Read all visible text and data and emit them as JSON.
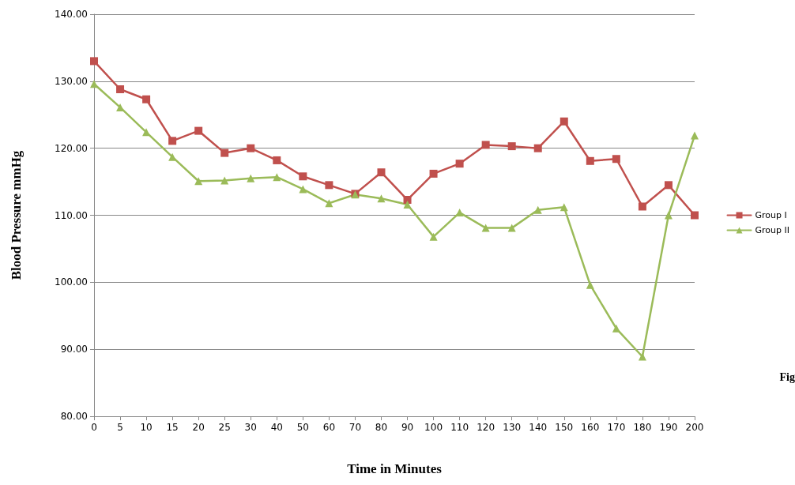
{
  "chart_data": {
    "type": "line",
    "xlabel": "Time in Minutes",
    "ylabel": "Blood Pressure mmHg",
    "categories": [
      "0",
      "5",
      "10",
      "15",
      "20",
      "25",
      "30",
      "40",
      "50",
      "60",
      "70",
      "80",
      "90",
      "100",
      "110",
      "120",
      "130",
      "140",
      "150",
      "160",
      "170",
      "180",
      "190",
      "200"
    ],
    "series": [
      {
        "name": "Group I",
        "color": "#c0504d",
        "marker": "square",
        "values": [
          133.0,
          128.8,
          127.3,
          121.1,
          122.6,
          119.3,
          120.0,
          118.2,
          115.8,
          114.5,
          113.2,
          116.4,
          112.3,
          116.2,
          117.7,
          120.5,
          120.3,
          120.0,
          124.0,
          118.1,
          118.4,
          111.3,
          114.5,
          110.0
        ]
      },
      {
        "name": "Group II",
        "color": "#9bbb59",
        "marker": "triangle",
        "values": [
          129.6,
          126.1,
          122.4,
          118.7,
          115.1,
          115.2,
          115.5,
          115.7,
          113.9,
          111.8,
          113.1,
          112.5,
          111.6,
          106.8,
          110.4,
          108.1,
          108.1,
          110.8,
          111.2,
          99.6,
          93.1,
          88.9,
          110.0,
          121.9
        ]
      }
    ],
    "ylim": [
      80,
      140
    ],
    "yticks": [
      {
        "value": 80,
        "label": "80.00"
      },
      {
        "value": 90,
        "label": "90.00"
      },
      {
        "value": 100,
        "label": "100.00"
      },
      {
        "value": 110,
        "label": "110.00"
      },
      {
        "value": 120,
        "label": "120.00"
      },
      {
        "value": 130,
        "label": "130.00"
      },
      {
        "value": 140,
        "label": "140.00"
      }
    ],
    "grid": "y",
    "legend": "right",
    "annotations": [
      "Fig"
    ]
  }
}
